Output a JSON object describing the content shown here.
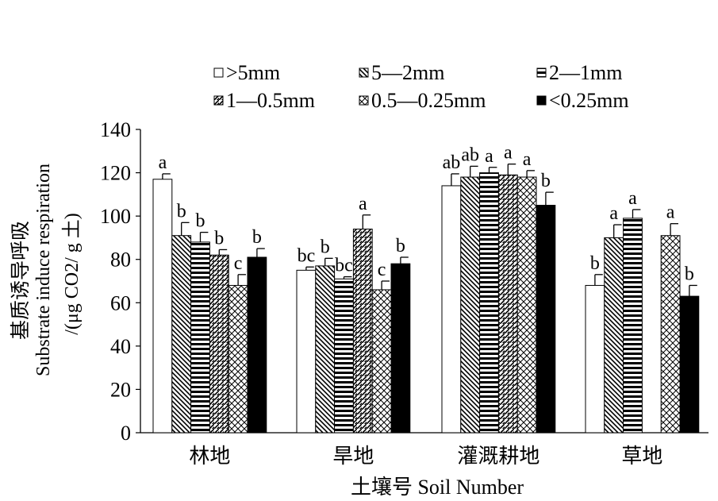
{
  "chart_data": {
    "type": "bar",
    "ylabel_cn": "基质诱导呼吸",
    "ylabel_en": "Substrate induce respiration",
    "ylabel_unit": "/(μg CO2/ g 土)",
    "xlabel": "土壤号 Soil Number",
    "ylim": [
      0,
      140
    ],
    "yticks": [
      0,
      20,
      40,
      60,
      80,
      100,
      120,
      140
    ],
    "categories": [
      "林地",
      "旱地",
      "灌溉耕地",
      "草地"
    ],
    "legend_position": "top",
    "series": [
      {
        "name": ">5mm",
        "pattern": "white",
        "values": [
          117,
          75,
          114,
          68
        ],
        "errors": [
          2.5,
          1.5,
          5.5,
          5
        ],
        "letters": [
          "a",
          "bc",
          "ab",
          "b"
        ]
      },
      {
        "name": "5—2mm",
        "pattern": "diag-left",
        "values": [
          91,
          77,
          118,
          90
        ],
        "errors": [
          6,
          3.5,
          5,
          6
        ],
        "letters": [
          "b",
          "b",
          "ab",
          "a"
        ]
      },
      {
        "name": "2—1mm",
        "pattern": "horizontal",
        "values": [
          88,
          71,
          120,
          99
        ],
        "errors": [
          4.5,
          1,
          2.5,
          4
        ],
        "letters": [
          "b",
          "bc",
          "a",
          "a"
        ]
      },
      {
        "name": "1—0.5mm",
        "pattern": "diag-right",
        "values": [
          82,
          94,
          119,
          0
        ],
        "errors": [
          2.5,
          6.5,
          5,
          0
        ],
        "letters": [
          "b",
          "a",
          "a",
          ""
        ]
      },
      {
        "name": "0.5—0.25mm",
        "pattern": "diamond",
        "values": [
          68,
          66,
          118,
          91
        ],
        "errors": [
          5,
          4,
          3,
          5.5
        ],
        "letters": [
          "c",
          "c",
          "a",
          "a"
        ]
      },
      {
        "name": "<0.25mm",
        "pattern": "black",
        "values": [
          81,
          78,
          105,
          63
        ],
        "errors": [
          4,
          3,
          6,
          5
        ],
        "letters": [
          "b",
          "b",
          "b",
          "b"
        ]
      }
    ]
  }
}
